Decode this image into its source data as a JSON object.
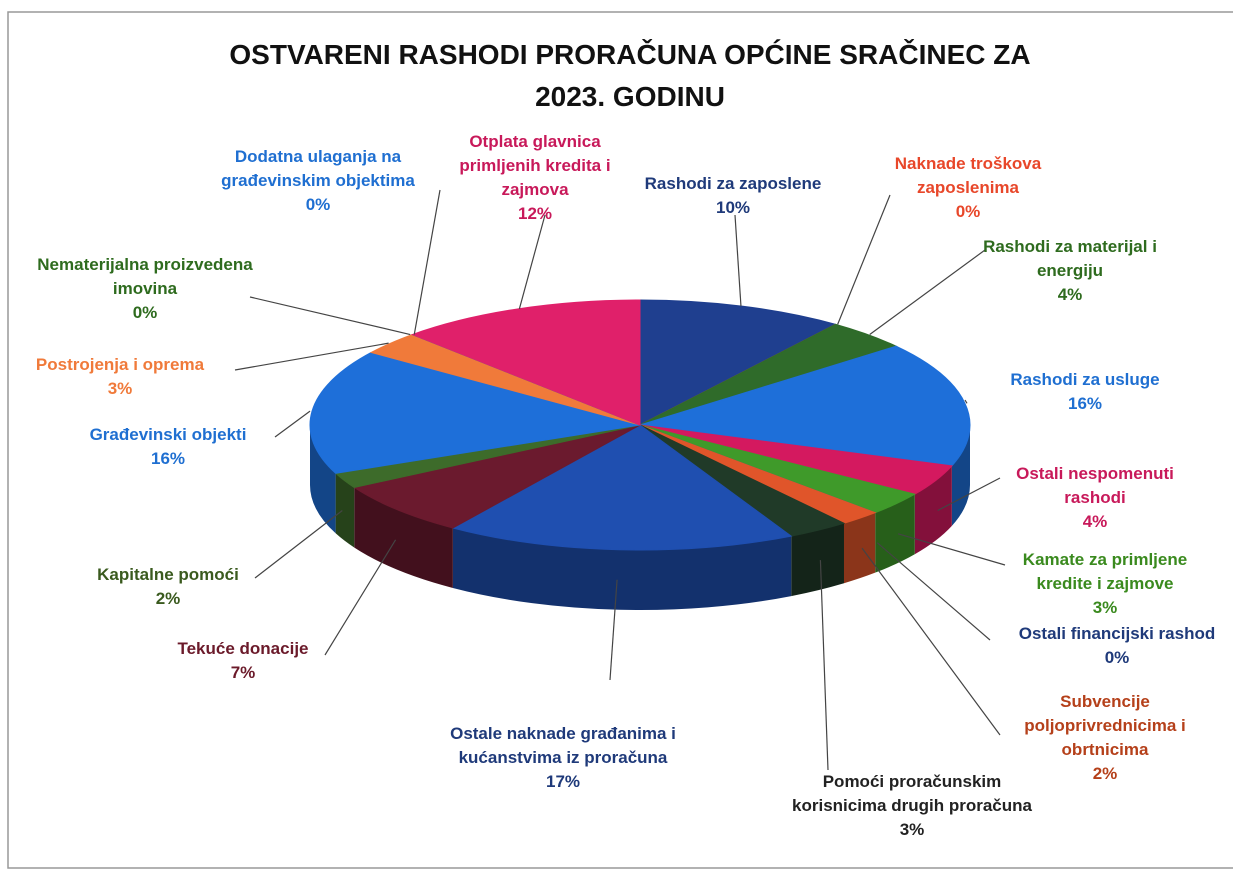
{
  "chart_data": {
    "type": "pie3d",
    "title": "OSTVARENI RASHODI PRORAČUNA OPĆINE SRAČINEC ZA 2023. GODINU",
    "categories": [
      "Rashodi za zaposlene",
      "Naknade troškova zaposlenima",
      "Rashodi za materijal i energiju",
      "Rashodi za usluge",
      "Ostali nespomenuti rashodi",
      "Kamate za primljene kredite i zajmove",
      "Ostali financijski rashod",
      "Subvencije poljoprivrednicima i obrtnicima",
      "Pomoći proračunskim korisnicima drugih proračuna",
      "Ostale naknade građanima i kućanstvima iz proračuna",
      "Tekuće donacije",
      "Kapitalne pomoći",
      "Građevinski objekti",
      "Postrojenja i oprema",
      "Nematerijalna proizvedena imovina",
      "Dodatna ulaganja na građevinskim objektima",
      "Otplata glavnica primljenih kredita i zajmova"
    ],
    "values": [
      10,
      0,
      4,
      16,
      4,
      3,
      0,
      2,
      3,
      17,
      7,
      2,
      16,
      3,
      0,
      0,
      12
    ],
    "value_labels": [
      "10%",
      "0%",
      "4%",
      "16%",
      "4%",
      "3%",
      "0%",
      "2%",
      "3%",
      "17%",
      "7%",
      "2%",
      "16%",
      "3%",
      "0%",
      "0%",
      "12%"
    ],
    "colors": [
      "#1f3f8f",
      "#e8552f",
      "#2f6b2a",
      "#1e6fd9",
      "#d4195f",
      "#3f9a2a",
      "#2255aa",
      "#e0552a",
      "#203a28",
      "#1f4fb0",
      "#6b1a2e",
      "#3d6b2a",
      "#1e6fd9",
      "#f07a3a",
      "#3a8a2a",
      "#2a7ae0",
      "#e0206a"
    ],
    "label_colors": [
      "#1f3a7a",
      "#e8472a",
      "#2e6b1e",
      "#1f6fd1",
      "#c8195a",
      "#3a8a1e",
      "#1f3a7a",
      "#b5401a",
      "#222222",
      "#1f3a7a",
      "#6b1a2a",
      "#3a5a1e",
      "#1f6fd1",
      "#f07a3a",
      "#2e6b1e",
      "#1f6fd1",
      "#c8195a"
    ]
  }
}
